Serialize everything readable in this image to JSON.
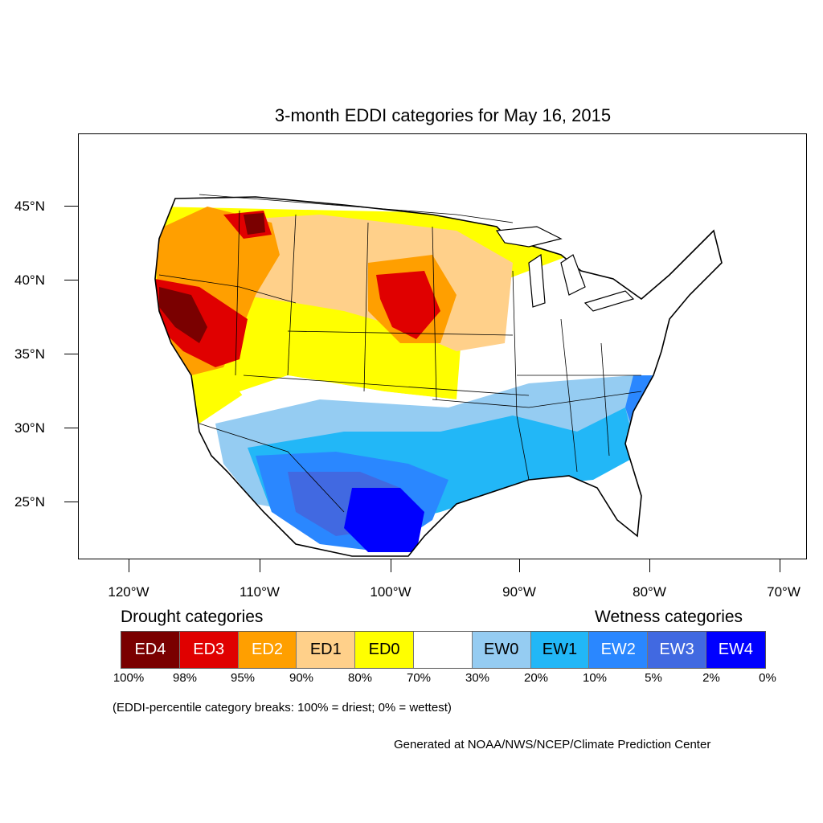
{
  "title": "3-month EDDI categories for May 16, 2015",
  "map": {
    "latitude_labels": [
      "45°N",
      "40°N",
      "35°N",
      "30°N",
      "25°N"
    ],
    "longitude_labels": [
      "120°W",
      "110°W",
      "100°W",
      "90°W",
      "80°W",
      "70°W"
    ],
    "region": "Contiguous United States",
    "colors": {
      "ED4": "#7a0000",
      "ED3": "#e00000",
      "ED2": "#ff9f00",
      "ED1": "#ffd08a",
      "ED0": "#ffff00",
      "neutral": "#ffffff",
      "EW0": "#95ccf2",
      "EW1": "#22b7f7",
      "EW2": "#2a87ff",
      "EW3": "#4169e1",
      "EW4": "#0000ff"
    }
  },
  "legend": {
    "drought_heading": "Drought categories",
    "wetness_heading": "Wetness categories",
    "categories": [
      {
        "label": "ED4",
        "color": "#7a0000",
        "text_color": "#ffffff"
      },
      {
        "label": "ED3",
        "color": "#e00000",
        "text_color": "#ffffff"
      },
      {
        "label": "ED2",
        "color": "#ff9f00",
        "text_color": "#ffffff"
      },
      {
        "label": "ED1",
        "color": "#ffd08a",
        "text_color": "#000000"
      },
      {
        "label": "ED0",
        "color": "#ffff00",
        "text_color": "#000000"
      },
      {
        "label": "",
        "color": "#ffffff",
        "text_color": "#000000"
      },
      {
        "label": "EW0",
        "color": "#95ccf2",
        "text_color": "#000000"
      },
      {
        "label": "EW1",
        "color": "#22b7f7",
        "text_color": "#000000"
      },
      {
        "label": "EW2",
        "color": "#2a87ff",
        "text_color": "#ffffff"
      },
      {
        "label": "EW3",
        "color": "#4169e1",
        "text_color": "#ffffff"
      },
      {
        "label": "EW4",
        "color": "#0000ff",
        "text_color": "#ffffff"
      }
    ],
    "percent_breaks": [
      "100%",
      "98%",
      "95%",
      "90%",
      "80%",
      "70%",
      "30%",
      "20%",
      "10%",
      "5%",
      "2%",
      "0%"
    ]
  },
  "note": "(EDDI-percentile category breaks: 100% = driest; 0% = wettest)",
  "credit": "Generated at NOAA/NWS/NCEP/Climate Prediction Center"
}
